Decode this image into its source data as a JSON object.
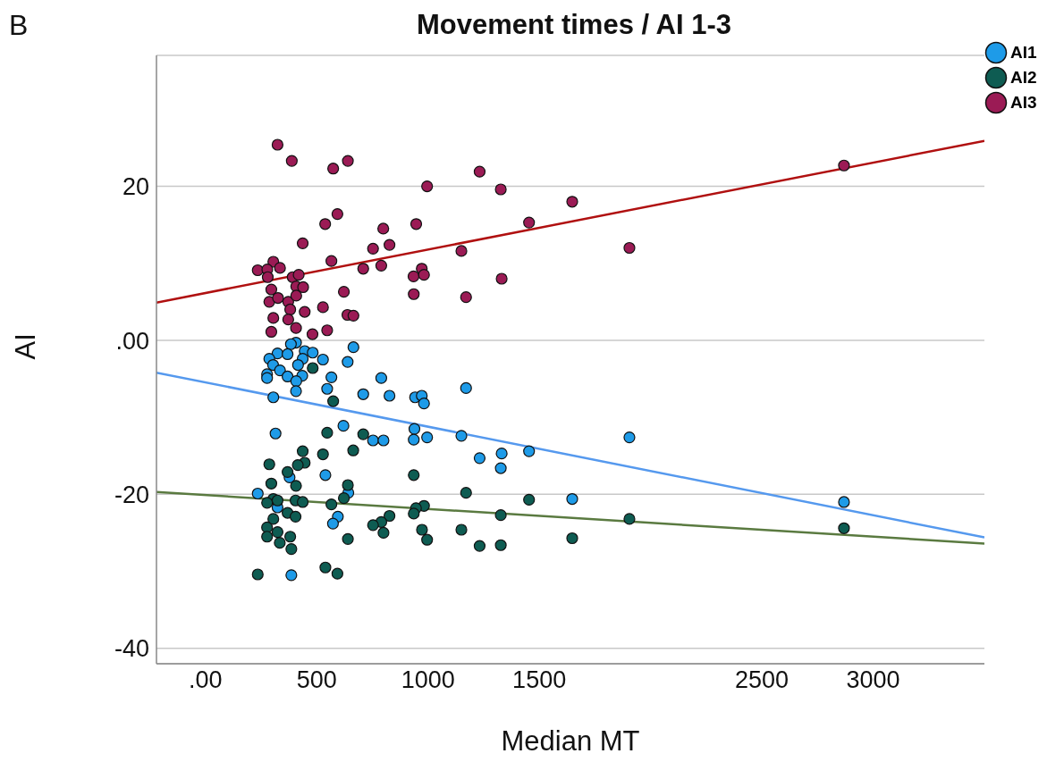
{
  "chart_data": {
    "type": "scatter",
    "title": "Movement times / AI 1-3",
    "xlabel": "Median MT",
    "ylabel": "AI",
    "annotations": [
      "B"
    ],
    "xlim": [
      -220,
      3500
    ],
    "ylim": [
      -42,
      37
    ],
    "xticks": [
      {
        "value": 0,
        "label": ".00"
      },
      500,
      1000,
      1500,
      2500,
      3000
    ],
    "yticks": [
      -40,
      -20,
      {
        "value": 0,
        "label": ".00"
      },
      20
    ],
    "grid": "y",
    "legend": "top right",
    "marker": "circle",
    "series": [
      {
        "name": "AI1",
        "color": "#1e9be8",
        "x": [
          407,
          384,
          665,
          324,
          369,
          446,
          482,
          287,
          437,
          528,
          639,
          416,
          304,
          335,
          277,
          277,
          369,
          435,
          408,
          566,
          790,
          1171,
          547,
          407,
          709,
          827,
          305,
          942,
          972,
          982,
          939,
          620,
          315,
          753,
          800,
          936,
          996,
          1150,
          1454,
          1331,
          1232,
          1327,
          539,
          378,
          642,
          235,
          1648,
          324,
          595,
          573,
          386,
          2869,
          1905
        ],
        "values": [
          -0.3,
          -0.5,
          -0.9,
          -1.7,
          -1.8,
          -1.4,
          -1.6,
          -2.4,
          -2.4,
          -2.5,
          -2.8,
          -3.2,
          -3.2,
          -3.9,
          -4.4,
          -4.9,
          -4.7,
          -4.6,
          -5.3,
          -4.8,
          -4.9,
          -6.2,
          -6.3,
          -6.6,
          -7.0,
          -7.2,
          -7.4,
          -7.4,
          -7.2,
          -8.2,
          -11.5,
          -11.1,
          -12.1,
          -13.0,
          -13.0,
          -12.9,
          -12.6,
          -12.4,
          -14.4,
          -14.7,
          -15.3,
          -16.6,
          -17.5,
          -17.8,
          -19.8,
          -19.9,
          -20.6,
          -21.7,
          -22.9,
          -23.8,
          -30.5,
          -21.0,
          -12.6
        ]
      },
      {
        "name": "AI2",
        "color": "#0e5c52",
        "x": [
          482,
          574,
          547,
          709,
          664,
          437,
          528,
          446,
          415,
          287,
          936,
          369,
          296,
          407,
          640,
          1171,
          622,
          1454,
          305,
          324,
          277,
          405,
          437,
          566,
          982,
          946,
          936,
          1327,
          369,
          405,
          305,
          827,
          790,
          753,
          800,
          1150,
          973,
          277,
          324,
          277,
          381,
          334,
          640,
          996,
          1232,
          1327,
          1648,
          386,
          235,
          539,
          593,
          1905,
          2869
        ],
        "values": [
          -3.6,
          -7.9,
          -12.0,
          -12.2,
          -14.3,
          -14.4,
          -14.8,
          -15.9,
          -16.2,
          -16.1,
          -17.5,
          -17.1,
          -18.6,
          -18.9,
          -18.8,
          -19.8,
          -20.5,
          -20.7,
          -20.6,
          -20.8,
          -21.1,
          -20.8,
          -21.0,
          -21.3,
          -21.5,
          -21.8,
          -22.5,
          -22.7,
          -22.4,
          -22.9,
          -23.2,
          -22.8,
          -23.6,
          -24.0,
          -25.0,
          -24.6,
          -24.6,
          -24.3,
          -24.9,
          -25.5,
          -25.5,
          -26.3,
          -25.8,
          -25.9,
          -26.7,
          -26.6,
          -25.7,
          -27.1,
          -30.4,
          -29.5,
          -30.3,
          -23.2,
          -24.4
        ]
      },
      {
        "name": "AI3",
        "color": "#9b1b55",
        "x": [
          324,
          388,
          574,
          640,
          996,
          1232,
          1327,
          1648,
          593,
          538,
          947,
          799,
          1454,
          437,
          753,
          827,
          1150,
          566,
          305,
          235,
          278,
          335,
          709,
          790,
          972,
          935,
          982,
          1331,
          280,
          392,
          419,
          408,
          439,
          296,
          622,
          936,
          1171,
          287,
          326,
          372,
          408,
          381,
          528,
          446,
          305,
          372,
          638,
          665,
          296,
          407,
          547,
          481,
          1905,
          2869
        ],
        "values": [
          25.4,
          23.3,
          22.3,
          23.3,
          20.0,
          21.9,
          19.6,
          18.0,
          16.4,
          15.1,
          15.1,
          14.5,
          15.3,
          12.6,
          11.9,
          12.4,
          11.6,
          10.3,
          10.2,
          9.1,
          9.2,
          9.4,
          9.3,
          9.7,
          9.3,
          8.3,
          8.5,
          8.0,
          8.2,
          8.2,
          8.5,
          7.0,
          6.9,
          6.6,
          6.3,
          6.0,
          5.6,
          5.0,
          5.5,
          5.0,
          5.8,
          4.0,
          4.3,
          3.7,
          2.9,
          2.7,
          3.3,
          3.2,
          1.1,
          1.6,
          1.3,
          0.8,
          12.0,
          22.7
        ]
      },
      {
        "type": "line",
        "marker": "none",
        "color": "#5599ee",
        "x": [
          -220,
          3500
        ],
        "values": [
          -4.2,
          -25.6
        ]
      },
      {
        "type": "line",
        "marker": "none",
        "color": "#5a7a40",
        "x": [
          -220,
          3500
        ],
        "values": [
          -19.7,
          -26.4
        ]
      },
      {
        "type": "line",
        "marker": "none",
        "color": "#b01010",
        "x": [
          -220,
          3500
        ],
        "values": [
          4.9,
          25.9
        ]
      }
    ]
  }
}
